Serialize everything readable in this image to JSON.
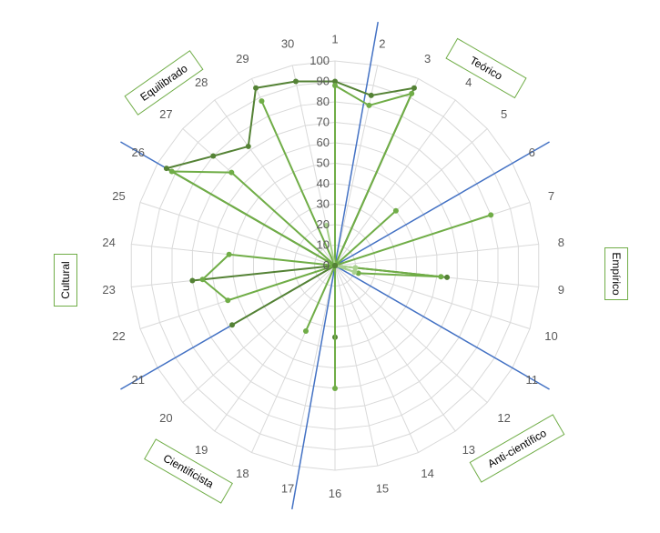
{
  "chart_data": {
    "type": "radar",
    "title": "",
    "categories": [
      "1",
      "2",
      "3",
      "4",
      "5",
      "6",
      "7",
      "8",
      "9",
      "10",
      "11",
      "12",
      "13",
      "14",
      "15",
      "16",
      "17",
      "18",
      "19",
      "20",
      "21",
      "22",
      "23",
      "24",
      "25",
      "26",
      "27",
      "28",
      "29",
      "30"
    ],
    "radial_ticks": [
      "0",
      "10",
      "20",
      "30",
      "40",
      "50",
      "60",
      "70",
      "80",
      "90",
      "100"
    ],
    "rmax": 100,
    "grid": true,
    "series": [
      {
        "color": "#548235",
        "values": [
          90,
          85,
          95,
          0,
          0,
          0,
          0,
          0,
          55,
          0,
          0,
          0,
          0,
          0,
          0,
          35,
          0,
          0,
          0,
          0,
          58,
          0,
          70,
          0,
          0,
          95,
          80,
          72,
          95,
          92
        ]
      },
      {
        "color": "#70ad47",
        "values": [
          88,
          80,
          92,
          0,
          40,
          0,
          80,
          0,
          52,
          12,
          0,
          0,
          0,
          0,
          0,
          0,
          0,
          35,
          0,
          0,
          0,
          55,
          65,
          52,
          0,
          92,
          68,
          0,
          88,
          0
        ]
      },
      {
        "color": "#a9d18e",
        "values": [
          0,
          0,
          0,
          0,
          0,
          0,
          0,
          0,
          10,
          10,
          0,
          0,
          0,
          0,
          0,
          0,
          0,
          0,
          0,
          0,
          0,
          0,
          0,
          0,
          0,
          0,
          0,
          0,
          0,
          20
        ]
      },
      {
        "color": "#70ad47",
        "values": [
          0,
          0,
          0,
          0,
          0,
          0,
          0,
          0,
          0,
          0,
          0,
          0,
          0,
          0,
          0,
          60,
          0,
          0,
          0,
          0,
          0,
          0,
          0,
          0,
          0,
          0,
          0,
          0,
          0,
          0
        ]
      },
      {
        "color": "#548235",
        "values": [
          0,
          0,
          0,
          0,
          0,
          0,
          0,
          0,
          0,
          0,
          0,
          0,
          0,
          0,
          0,
          0,
          0,
          0,
          0,
          0,
          0,
          0,
          0,
          0,
          0,
          0,
          0,
          0,
          0,
          0
        ]
      }
    ],
    "axis_line_color": "#4472c4",
    "annotation_color": "#70ad47",
    "annotations": [
      "Teórico",
      "Empírico",
      "Anti-científico",
      "Cientificista",
      "Cultural",
      "Equilibrado"
    ]
  }
}
